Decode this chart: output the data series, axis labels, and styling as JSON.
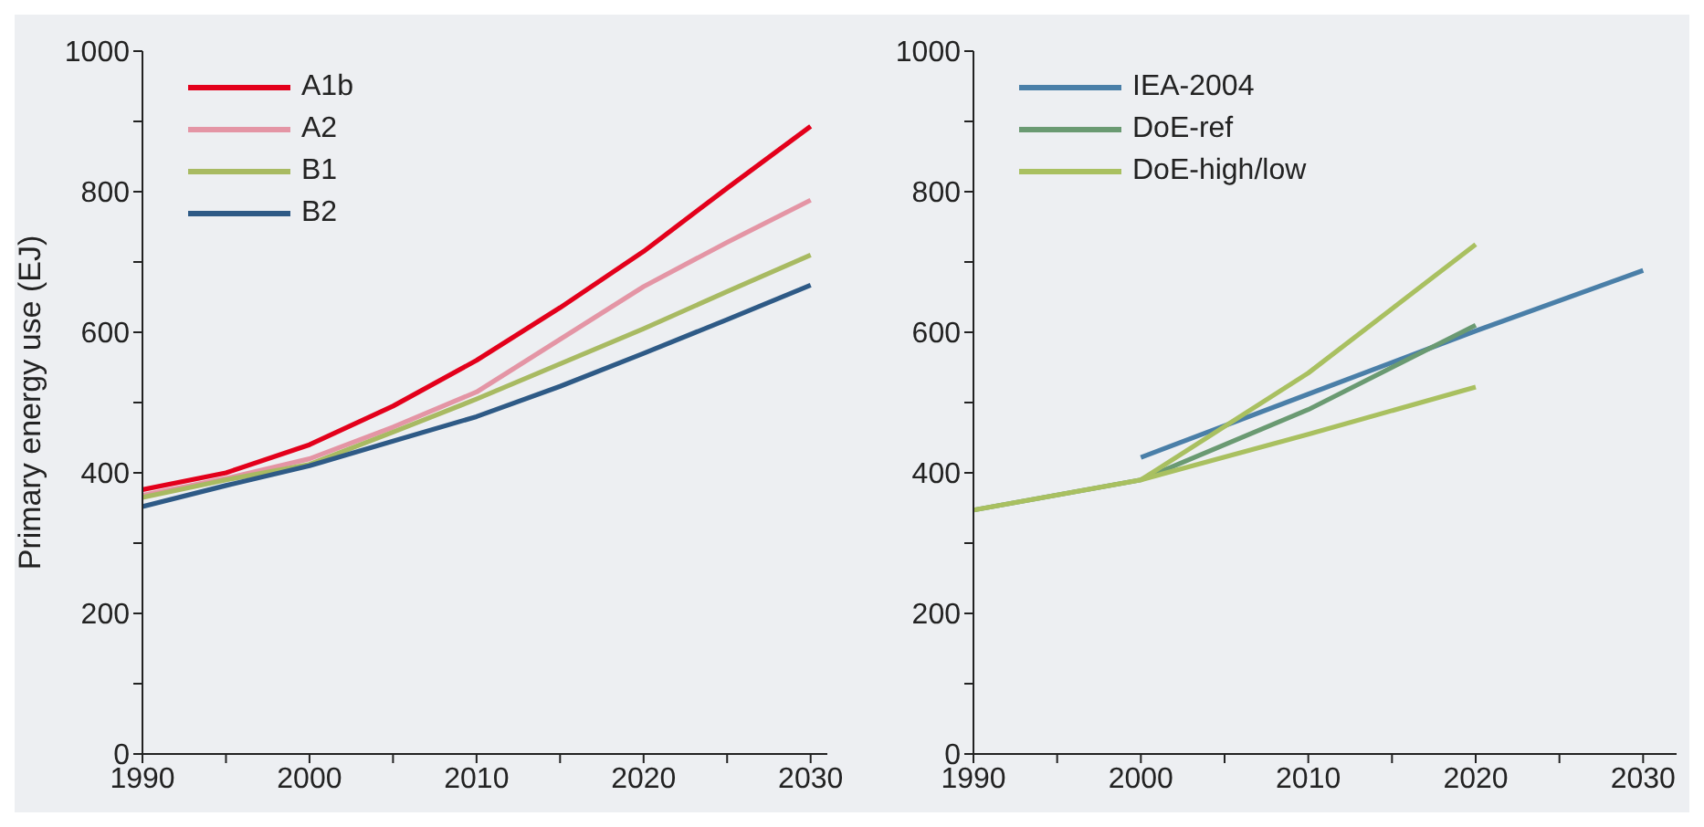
{
  "chart_data": [
    {
      "type": "line",
      "ylabel": "Primary energy use (EJ)",
      "xlim": [
        1990,
        2031
      ],
      "xticks": [
        1990,
        {
          "value": 1995,
          "label": null
        },
        2000,
        {
          "value": 2005,
          "label": null
        },
        2010,
        {
          "value": 2015,
          "label": null
        },
        2020,
        {
          "value": 2025,
          "label": null
        },
        2030
      ],
      "ylim": [
        0,
        1000
      ],
      "yticks": [
        0,
        {
          "value": 100,
          "label": null
        },
        200,
        {
          "value": 300,
          "label": null
        },
        400,
        {
          "value": 500,
          "label": null
        },
        600,
        {
          "value": 700,
          "label": null
        },
        800,
        {
          "value": 900,
          "label": null
        },
        1000
      ],
      "legend": "top left",
      "marker": "none",
      "line_style": "solid",
      "x": [
        1990,
        1995,
        2000,
        2005,
        2010,
        2015,
        2020,
        2025,
        2030
      ],
      "series": [
        {
          "name": "A1b",
          "color": "#e3001b",
          "values": [
            376,
            400,
            440,
            495,
            560,
            635,
            715,
            805,
            893
          ]
        },
        {
          "name": "A2",
          "color": "#e495a5",
          "values": [
            368,
            392,
            420,
            465,
            515,
            590,
            665,
            728,
            788
          ]
        },
        {
          "name": "B1",
          "color": "#a8ba62",
          "values": [
            365,
            390,
            412,
            458,
            505,
            555,
            605,
            658,
            710
          ]
        },
        {
          "name": "B2",
          "color": "#2e5a86",
          "values": [
            352,
            382,
            410,
            445,
            480,
            523,
            570,
            618,
            667
          ]
        }
      ]
    },
    {
      "type": "line",
      "xlim": [
        1990,
        2032
      ],
      "xticks": [
        1990,
        {
          "value": 1995,
          "label": null
        },
        2000,
        {
          "value": 2005,
          "label": null
        },
        2010,
        {
          "value": 2015,
          "label": null
        },
        2020,
        {
          "value": 2025,
          "label": null
        },
        2030
      ],
      "ylim": [
        0,
        1000
      ],
      "yticks": [
        0,
        {
          "value": 100,
          "label": null
        },
        200,
        {
          "value": 300,
          "label": null
        },
        400,
        {
          "value": 500,
          "label": null
        },
        600,
        {
          "value": 700,
          "label": null
        },
        800,
        {
          "value": 900,
          "label": null
        },
        1000
      ],
      "legend": "top left",
      "marker": "none",
      "line_style": "solid",
      "series": [
        {
          "name": "IEA-2004",
          "color": "#4a7fa8",
          "x": [
            2000,
            2010,
            2020,
            2030
          ],
          "values": [
            422,
            512,
            602,
            688
          ]
        },
        {
          "name": "DoE-ref",
          "color": "#6a9a72",
          "x": [
            1990,
            2000,
            2010,
            2020
          ],
          "values": [
            347,
            390,
            490,
            610
          ]
        },
        {
          "name": "DoE-high/low",
          "color": "#a9c060",
          "x": [
            1990,
            2000,
            2010,
            2020
          ],
          "values": [
            347,
            390,
            542,
            725
          ]
        },
        {
          "color": "#a9c060",
          "x": [
            2000,
            2010,
            2020
          ],
          "values": [
            390,
            455,
            522
          ]
        }
      ]
    }
  ]
}
